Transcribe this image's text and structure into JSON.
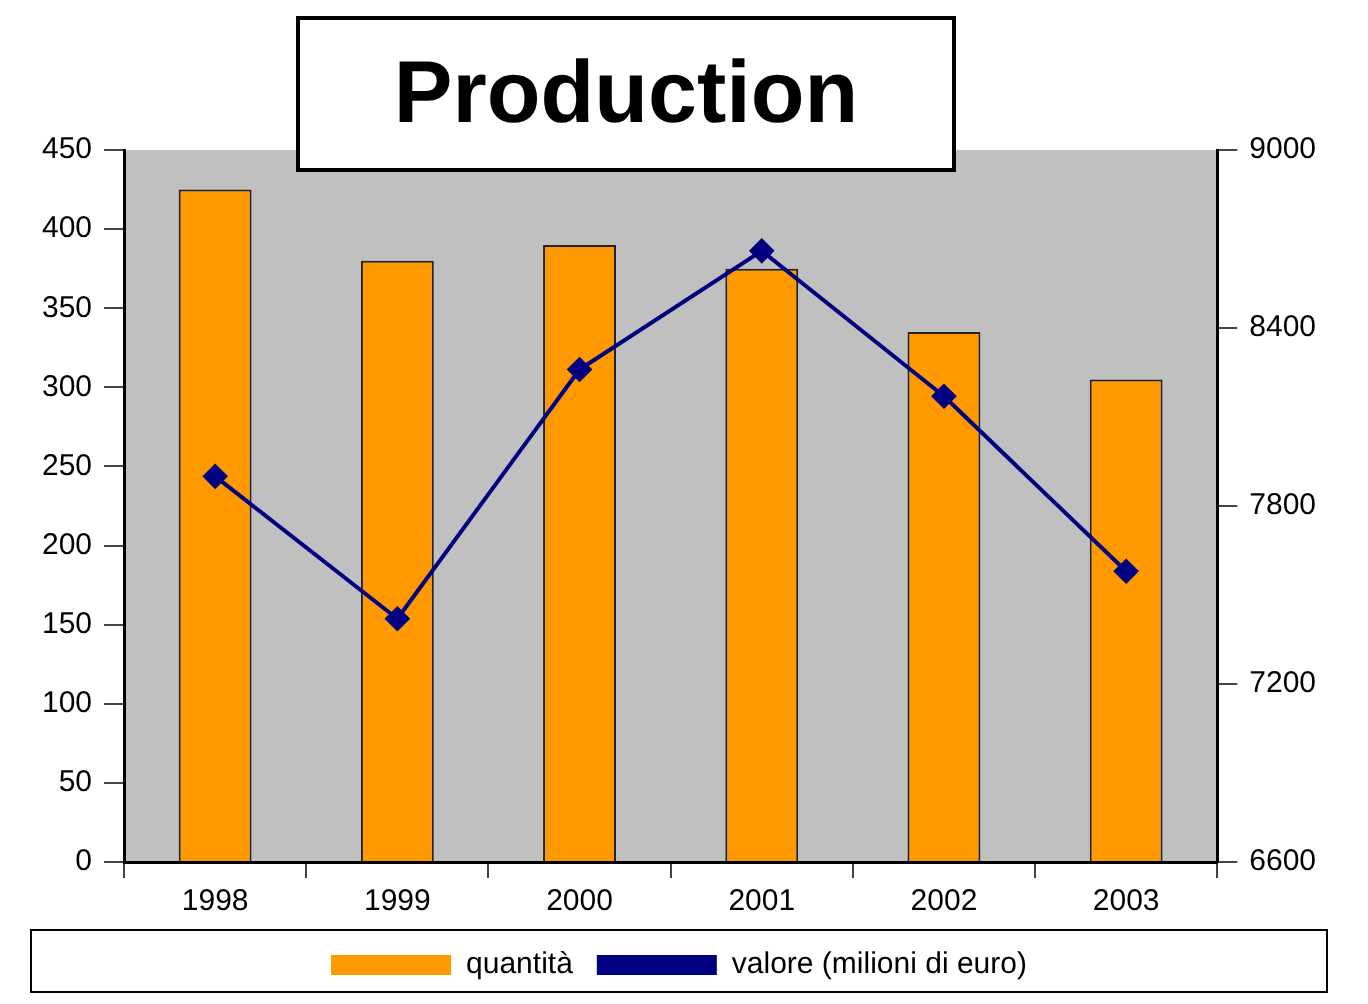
{
  "chart_data": {
    "type": "bar",
    "title": "Production",
    "categories": [
      "1998",
      "1999",
      "2000",
      "2001",
      "2002",
      "2003"
    ],
    "series": [
      {
        "name": "quantità",
        "color": "#ff9900",
        "values": [
          425,
          380,
          390,
          375,
          335,
          305
        ]
      },
      {
        "name": "valore (milioni di euro)",
        "type": "line",
        "axis": "y2",
        "color": "#000080",
        "marker": "diamond",
        "values": [
          7900,
          7420,
          8260,
          8660,
          8170,
          7580
        ]
      }
    ],
    "ylim": [
      0,
      450
    ],
    "yticks": [
      0,
      50,
      100,
      150,
      200,
      250,
      300,
      350,
      400,
      450
    ],
    "y2lim": [
      6600,
      9000
    ],
    "y2ticks": [
      6600,
      7200,
      7800,
      8400,
      9000
    ],
    "grid": false,
    "legend": "bottom"
  }
}
